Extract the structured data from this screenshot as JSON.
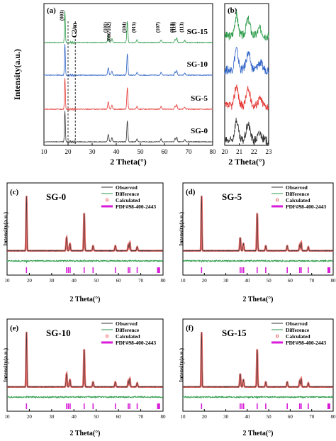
{
  "chart_data": [
    {
      "panel": "(a)",
      "type": "line",
      "xlabel": "2 Theta(°)",
      "ylabel": "Intensity(a.u.)",
      "xlim": [
        10,
        80
      ],
      "x_ticks": [
        "10",
        "20",
        "30",
        "40",
        "50",
        "60",
        "70",
        "80"
      ],
      "series": [
        {
          "name": "SG-15",
          "color": "#2a9a47"
        },
        {
          "name": "SG-10",
          "color": "#2d62c6"
        },
        {
          "name": "SG-5",
          "color": "#e53935"
        },
        {
          "name": "SG-0",
          "color": "#333333"
        }
      ],
      "peaks": [
        {
          "x": 18.7,
          "h": 1.0,
          "w": 0.18,
          "label": "(003)"
        },
        {
          "x": 36.7,
          "h": 0.24,
          "w": 0.25,
          "label": "(101)"
        },
        {
          "x": 38.2,
          "h": 0.13,
          "w": 0.25,
          "label": "(006/102)"
        },
        {
          "x": 44.6,
          "h": 0.68,
          "w": 0.22,
          "label": "(104)"
        },
        {
          "x": 48.6,
          "h": 0.09,
          "w": 0.25,
          "label": "(015)"
        },
        {
          "x": 58.6,
          "h": 0.09,
          "w": 0.25,
          "label": "(107)"
        },
        {
          "x": 64.4,
          "h": 0.11,
          "w": 0.22,
          "label": "(018)"
        },
        {
          "x": 65.1,
          "h": 0.15,
          "w": 0.22,
          "label": "(110)"
        },
        {
          "x": 68.4,
          "h": 0.07,
          "w": 0.25,
          "label": "(113)"
        }
      ],
      "annotation": "C2/m"
    },
    {
      "panel": "(b)",
      "type": "line",
      "xlabel": "2 Theta(°)",
      "xlim": [
        20,
        23
      ],
      "x_ticks": [
        "20",
        "21",
        "22",
        "23"
      ],
      "series": [
        {
          "name": "SG-15",
          "color": "#2a9a47"
        },
        {
          "name": "SG-10",
          "color": "#2d62c6"
        },
        {
          "name": "SG-5",
          "color": "#e53935"
        },
        {
          "name": "SG-0",
          "color": "#333333"
        }
      ],
      "peaks": [
        {
          "x": 20.8,
          "h": 1.0,
          "w": 0.12
        },
        {
          "x": 21.6,
          "h": 0.8,
          "w": 0.14
        },
        {
          "x": 22.4,
          "h": 0.35,
          "w": 0.15
        }
      ]
    },
    {
      "panel": "(c)",
      "sample": "SG-0",
      "type": "line",
      "xlabel": "2 Theta(°)",
      "ylabel": "Intensity(a.u.)",
      "xlim": [
        10,
        80
      ],
      "x_ticks": [
        "10",
        "20",
        "30",
        "40",
        "50",
        "60",
        "70",
        "80"
      ],
      "legend": [
        "Observed",
        "Difference",
        "Calculated",
        "PDF#98-400-2443"
      ],
      "reflections": [
        18.7,
        36.7,
        37.5,
        38.3,
        44.6,
        48.6,
        58.6,
        64.4,
        65.1,
        68.4,
        77.6,
        78.0,
        78.4
      ]
    },
    {
      "panel": "(d)",
      "sample": "SG-5",
      "type": "line",
      "xlabel": "2 Theta(°)",
      "ylabel": "Intensity(a.u.)",
      "xlim": [
        10,
        80
      ],
      "x_ticks": [
        "10",
        "20",
        "30",
        "40",
        "50",
        "60",
        "70",
        "80"
      ],
      "legend": [
        "Observed",
        "Difference",
        "Calculated",
        "PDF#98-400-2443"
      ],
      "reflections": [
        18.7,
        36.7,
        37.5,
        38.3,
        44.6,
        48.6,
        58.6,
        64.4,
        65.1,
        68.4,
        77.6,
        78.0,
        78.4
      ]
    },
    {
      "panel": "(e)",
      "sample": "SG-10",
      "type": "line",
      "xlabel": "2 Theta(°)",
      "ylabel": "Intensity(a.u.)",
      "xlim": [
        10,
        80
      ],
      "x_ticks": [
        "10",
        "20",
        "30",
        "40",
        "50",
        "60",
        "70",
        "80"
      ],
      "legend": [
        "Observed",
        "Difference",
        "Calculated",
        "PDF#98-400-2443"
      ],
      "reflections": [
        18.7,
        36.7,
        37.5,
        38.3,
        44.6,
        48.6,
        58.6,
        64.4,
        65.1,
        68.4,
        77.6,
        78.0,
        78.4
      ]
    },
    {
      "panel": "(f)",
      "sample": "SG-15",
      "type": "line",
      "xlabel": "2 Theta(°)",
      "ylabel": "Intensity(a.u.)",
      "xlim": [
        10,
        80
      ],
      "x_ticks": [
        "10",
        "20",
        "30",
        "40",
        "50",
        "60",
        "70",
        "80"
      ],
      "legend": [
        "Observed",
        "Difference",
        "Calculated",
        "PDF#98-400-2443"
      ],
      "reflections": [
        18.7,
        36.7,
        37.5,
        38.3,
        44.6,
        48.6,
        58.6,
        64.4,
        65.1,
        68.4,
        77.6,
        78.0,
        78.4
      ]
    }
  ],
  "colors": {
    "observed": "#333333",
    "difference": "#2a9a47",
    "calculated": "#e53935",
    "pdf": "#d81bd8"
  }
}
